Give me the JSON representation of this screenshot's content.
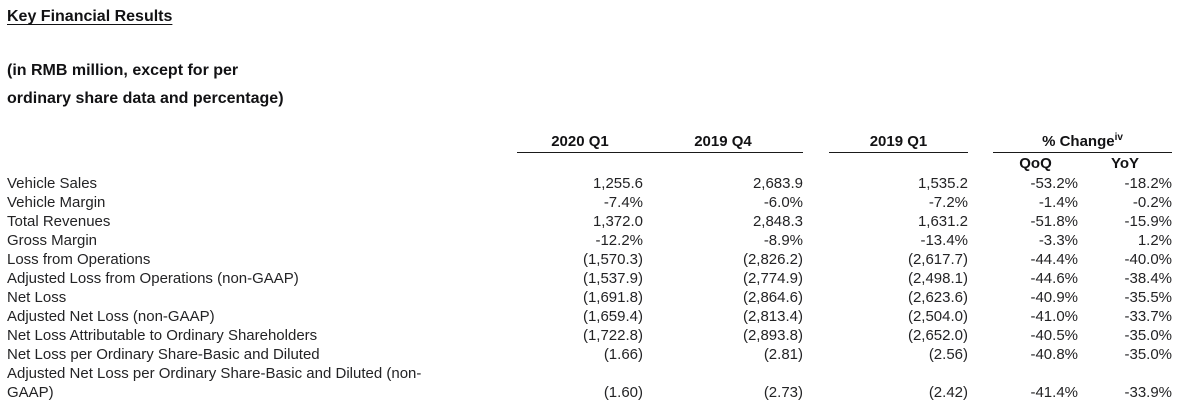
{
  "title": "Key Financial Results",
  "subtitle": {
    "line1": "(in RMB million, except for per",
    "line2": "ordinary share data and percentage)"
  },
  "table": {
    "period_headers": {
      "q1_2020": "2020 Q1",
      "q4_2019": "2019 Q4",
      "q1_2019": "2019 Q1"
    },
    "change_header": {
      "label": "% Change",
      "superscript": "iv"
    },
    "change_subheaders": {
      "qoq": "QoQ",
      "yoy": "YoY"
    },
    "rows": [
      {
        "label": "Vehicle Sales",
        "q1_2020": "1,255.6",
        "q4_2019": "2,683.9",
        "q1_2019": "1,535.2",
        "qoq": "-53.2%",
        "yoy": "-18.2%"
      },
      {
        "label": "Vehicle Margin",
        "q1_2020": "-7.4%",
        "q4_2019": "-6.0%",
        "q1_2019": "-7.2%",
        "qoq": "-1.4%",
        "yoy": "-0.2%"
      },
      {
        "label": "Total Revenues",
        "q1_2020": "1,372.0",
        "q4_2019": "2,848.3",
        "q1_2019": "1,631.2",
        "qoq": "-51.8%",
        "yoy": "-15.9%"
      },
      {
        "label": "Gross Margin",
        "q1_2020": "-12.2%",
        "q4_2019": "-8.9%",
        "q1_2019": "-13.4%",
        "qoq": "-3.3%",
        "yoy": "1.2%"
      },
      {
        "label": "Loss from Operations",
        "q1_2020": "(1,570.3)",
        "q4_2019": "(2,826.2)",
        "q1_2019": "(2,617.7)",
        "qoq": "-44.4%",
        "yoy": "-40.0%"
      },
      {
        "label": "Adjusted Loss from Operations (non-GAAP)",
        "q1_2020": "(1,537.9)",
        "q4_2019": "(2,774.9)",
        "q1_2019": "(2,498.1)",
        "qoq": "-44.6%",
        "yoy": "-38.4%"
      },
      {
        "label": "Net Loss",
        "q1_2020": "(1,691.8)",
        "q4_2019": "(2,864.6)",
        "q1_2019": "(2,623.6)",
        "qoq": "-40.9%",
        "yoy": "-35.5%"
      },
      {
        "label": "Adjusted Net Loss (non-GAAP)",
        "q1_2020": "(1,659.4)",
        "q4_2019": "(2,813.4)",
        "q1_2019": "(2,504.0)",
        "qoq": "-41.0%",
        "yoy": "-33.7%"
      },
      {
        "label": "Net Loss Attributable to Ordinary Shareholders",
        "q1_2020": "(1,722.8)",
        "q4_2019": "(2,893.8)",
        "q1_2019": "(2,652.0)",
        "qoq": "-40.5%",
        "yoy": "-35.0%"
      },
      {
        "label": "Net Loss per Ordinary Share-Basic and Diluted",
        "q1_2020": "(1.66)",
        "q4_2019": "(2.81)",
        "q1_2019": "(2.56)",
        "qoq": "-40.8%",
        "yoy": "-35.0%"
      },
      {
        "label": [
          "Adjusted Net Loss per Ordinary Share-Basic and Diluted (non-",
          "GAAP)"
        ],
        "q1_2020": "(1.60)",
        "q4_2019": "(2.73)",
        "q1_2019": "(2.42)",
        "qoq": "-41.4%",
        "yoy": "-33.9%"
      }
    ]
  }
}
